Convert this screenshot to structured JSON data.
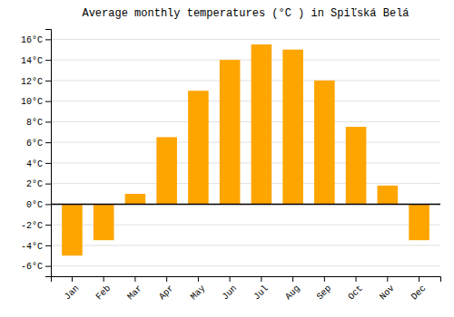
{
  "chart_data": {
    "type": "bar",
    "title": "Average monthly temperatures (°C ) in Spiľská Belá",
    "categories": [
      "Jan",
      "Feb",
      "Mar",
      "Apr",
      "May",
      "Jun",
      "Jul",
      "Aug",
      "Sep",
      "Oct",
      "Nov",
      "Dec"
    ],
    "values": [
      -5.0,
      -3.5,
      1.0,
      6.5,
      11.0,
      14.0,
      15.5,
      15.0,
      12.0,
      7.5,
      1.8,
      -3.5
    ],
    "color": "#FFA500",
    "ylim": [
      -7,
      17
    ],
    "yticks": [
      {
        "value": -6,
        "label": "-6°C"
      },
      {
        "value": -4,
        "label": "-4°C"
      },
      {
        "value": -2,
        "label": "-2°C"
      },
      {
        "value": 0,
        "label": "0°C"
      },
      {
        "value": 2,
        "label": "2°C"
      },
      {
        "value": 4,
        "label": "4°C"
      },
      {
        "value": 6,
        "label": "6°C"
      },
      {
        "value": 8,
        "label": "8°C"
      },
      {
        "value": 10,
        "label": "10°C"
      },
      {
        "value": 12,
        "label": "12°C"
      },
      {
        "value": 14,
        "label": "14°C"
      },
      {
        "value": 16,
        "label": "16°C"
      }
    ],
    "grid": true
  }
}
